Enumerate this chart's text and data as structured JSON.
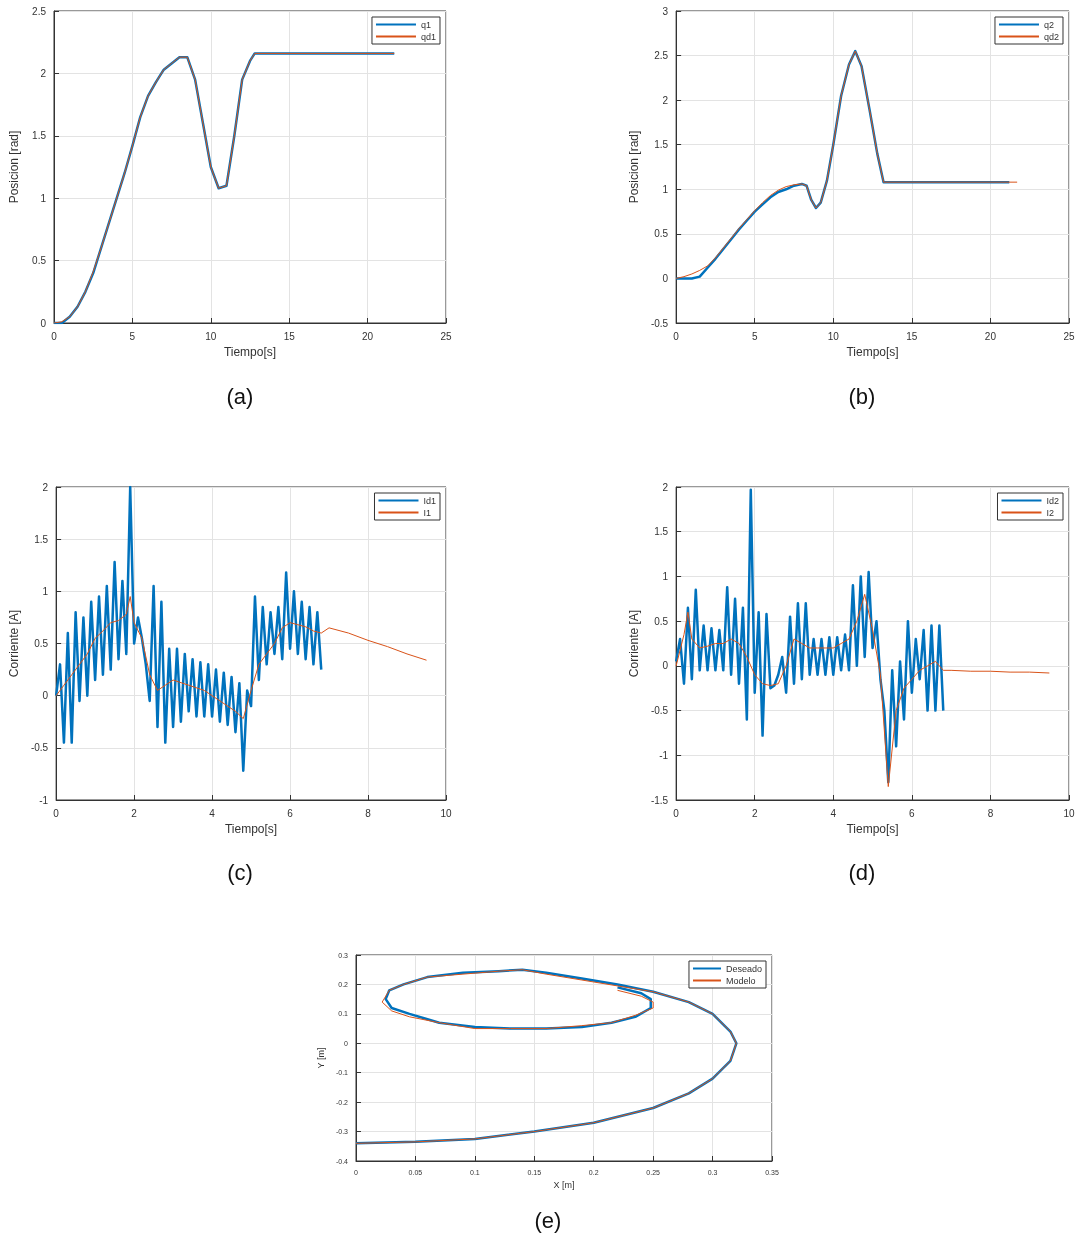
{
  "chart_data": [
    {
      "type": "line",
      "xlabel": "Tiempo[s]",
      "ylabel": "Posicion [rad]",
      "annotations": [
        "(a)"
      ],
      "xlim": [
        0,
        25
      ],
      "xticks": [
        0,
        5,
        10,
        15,
        20,
        25
      ],
      "ylim": [
        0,
        2.5
      ],
      "yticks": [
        0,
        0.5,
        1,
        1.5,
        2,
        2.5
      ],
      "grid": true,
      "legend": "top right",
      "x": [
        0,
        0.5,
        1,
        1.5,
        2,
        2.5,
        3,
        3.5,
        4,
        4.5,
        5,
        5.5,
        6,
        6.5,
        7,
        7.5,
        8,
        8.5,
        9,
        9.5,
        10,
        10.5,
        11,
        11.5,
        12,
        12.5,
        12.8,
        21.7
      ],
      "series": [
        {
          "name": "q1",
          "color": "#0072bd",
          "values": [
            0,
            0,
            0.05,
            0.13,
            0.25,
            0.4,
            0.6,
            0.8,
            1.0,
            1.2,
            1.42,
            1.65,
            1.82,
            1.93,
            2.03,
            2.08,
            2.13,
            2.13,
            1.95,
            1.6,
            1.25,
            1.08,
            1.1,
            1.5,
            1.95,
            2.1,
            2.16,
            2.16
          ]
        },
        {
          "name": "qd1",
          "color": "#d95319",
          "values": [
            0,
            0.01,
            0.05,
            0.13,
            0.25,
            0.41,
            0.6,
            0.8,
            1.0,
            1.2,
            1.42,
            1.65,
            1.82,
            1.93,
            2.03,
            2.08,
            2.13,
            2.13,
            1.95,
            1.6,
            1.25,
            1.08,
            1.1,
            1.5,
            1.95,
            2.1,
            2.16,
            2.16
          ]
        }
      ]
    },
    {
      "type": "line",
      "xlabel": "Tiempo[s]",
      "ylabel": "Posicion [rad]",
      "annotations": [
        "(b)"
      ],
      "xlim": [
        0,
        25
      ],
      "xticks": [
        0,
        5,
        10,
        15,
        20,
        25
      ],
      "ylim": [
        -0.5,
        3
      ],
      "yticks": [
        -0.5,
        0,
        0.5,
        1,
        1.5,
        2,
        2.5,
        3
      ],
      "grid": true,
      "legend": "top right",
      "series": [
        {
          "name": "q2",
          "color": "#0072bd",
          "x": [
            0,
            0.5,
            1,
            1.5,
            2,
            2.5,
            3,
            3.5,
            4,
            4.5,
            5,
            5.5,
            6,
            6.5,
            7,
            7.5,
            8,
            8.3,
            8.6,
            8.9,
            9.2,
            9.6,
            10,
            10.5,
            11,
            11.4,
            11.8,
            12.3,
            12.8,
            13.2,
            21.2
          ],
          "values": [
            0,
            0,
            0,
            0.02,
            0.12,
            0.22,
            0.33,
            0.44,
            0.55,
            0.65,
            0.75,
            0.83,
            0.91,
            0.97,
            1.0,
            1.04,
            1.06,
            1.04,
            0.88,
            0.79,
            0.85,
            1.1,
            1.5,
            2.05,
            2.4,
            2.55,
            2.38,
            1.9,
            1.4,
            1.08,
            1.08
          ]
        },
        {
          "name": "qd2",
          "color": "#d95319",
          "x": [
            0,
            0.5,
            1,
            1.5,
            2,
            2.5,
            3,
            3.5,
            4,
            4.5,
            5,
            5.5,
            6,
            6.5,
            7,
            7.5,
            8,
            8.3,
            8.6,
            8.9,
            9.2,
            9.6,
            10,
            10.5,
            11,
            11.4,
            11.8,
            12.3,
            12.8,
            13.2,
            21.7
          ],
          "values": [
            0,
            0.02,
            0.05,
            0.09,
            0.14,
            0.23,
            0.34,
            0.45,
            0.56,
            0.66,
            0.76,
            0.85,
            0.93,
            0.99,
            1.03,
            1.05,
            1.06,
            1.04,
            0.88,
            0.79,
            0.85,
            1.1,
            1.5,
            2.05,
            2.4,
            2.55,
            2.38,
            1.9,
            1.4,
            1.08,
            1.08
          ]
        }
      ]
    },
    {
      "type": "line",
      "xlabel": "Tiempo[s]",
      "ylabel": "Corriente [A]",
      "annotations": [
        "(c)"
      ],
      "xlim": [
        0,
        10
      ],
      "xticks": [
        0,
        2,
        4,
        6,
        8,
        10
      ],
      "ylim": [
        -1,
        2
      ],
      "yticks": [
        -1,
        -0.5,
        0,
        0.5,
        1,
        1.5,
        2
      ],
      "grid": true,
      "legend": "top right",
      "series": [
        {
          "name": "Id1",
          "color": "#0072bd",
          "x": [
            0,
            0.1,
            0.2,
            0.3,
            0.4,
            0.5,
            0.6,
            0.7,
            0.8,
            0.9,
            1.0,
            1.1,
            1.2,
            1.3,
            1.4,
            1.5,
            1.6,
            1.7,
            1.8,
            1.9,
            2.0,
            2.1,
            2.2,
            2.3,
            2.4,
            2.5,
            2.6,
            2.7,
            2.8,
            2.9,
            3.0,
            3.1,
            3.2,
            3.3,
            3.4,
            3.5,
            3.6,
            3.7,
            3.8,
            3.9,
            4.0,
            4.1,
            4.2,
            4.3,
            4.4,
            4.5,
            4.6,
            4.7,
            4.8,
            4.9,
            5.0,
            5.1,
            5.2,
            5.3,
            5.4,
            5.5,
            5.6,
            5.7,
            5.8,
            5.9,
            6.0,
            6.1,
            6.2,
            6.3,
            6.4,
            6.5,
            6.6,
            6.7,
            6.8
          ],
          "values": [
            0,
            0.3,
            -0.45,
            0.6,
            -0.45,
            0.8,
            -0.05,
            0.75,
            0.0,
            0.9,
            0.15,
            0.95,
            0.2,
            1.05,
            0.25,
            1.28,
            0.35,
            1.1,
            0.4,
            2.0,
            0.5,
            0.75,
            0.55,
            0.3,
            -0.05,
            1.05,
            -0.3,
            0.9,
            -0.45,
            0.45,
            -0.3,
            0.45,
            -0.25,
            0.4,
            -0.15,
            0.35,
            -0.2,
            0.32,
            -0.2,
            0.3,
            -0.2,
            0.25,
            -0.25,
            0.22,
            -0.28,
            0.18,
            -0.35,
            0.12,
            -0.72,
            0.05,
            -0.1,
            0.95,
            0.15,
            0.85,
            0.3,
            0.8,
            0.4,
            0.85,
            0.35,
            1.18,
            0.45,
            1.0,
            0.4,
            0.9,
            0.35,
            0.85,
            0.3,
            0.8,
            0.25
          ]
        },
        {
          "name": "I1",
          "color": "#d95319",
          "x": [
            0,
            0.2,
            0.4,
            0.6,
            0.8,
            1.0,
            1.2,
            1.4,
            1.6,
            1.8,
            1.9,
            2.0,
            2.2,
            2.4,
            2.6,
            2.8,
            3.0,
            3.4,
            3.8,
            4.2,
            4.6,
            4.8,
            5.0,
            5.2,
            5.4,
            5.6,
            5.8,
            6.0,
            6.2,
            6.4,
            6.6,
            6.8,
            7.0,
            7.5,
            8.0,
            8.5,
            9.0,
            9.5
          ],
          "values": [
            0,
            0.1,
            0.2,
            0.3,
            0.4,
            0.55,
            0.62,
            0.7,
            0.72,
            0.78,
            0.95,
            0.7,
            0.55,
            0.2,
            0.05,
            0.1,
            0.15,
            0.1,
            0.05,
            -0.05,
            -0.15,
            -0.22,
            0.05,
            0.3,
            0.4,
            0.5,
            0.65,
            0.7,
            0.68,
            0.66,
            0.62,
            0.6,
            0.65,
            0.6,
            0.53,
            0.47,
            0.4,
            0.34
          ]
        }
      ]
    },
    {
      "type": "line",
      "xlabel": "Tiempo[s]",
      "ylabel": "Corriente [A]",
      "annotations": [
        "(d)"
      ],
      "xlim": [
        0,
        10
      ],
      "xticks": [
        0,
        2,
        4,
        6,
        8,
        10
      ],
      "ylim": [
        -1.5,
        2
      ],
      "yticks": [
        -1.5,
        -1,
        -0.5,
        0,
        0.5,
        1,
        1.5,
        2
      ],
      "grid": true,
      "legend": "top right",
      "series": [
        {
          "name": "Id2",
          "color": "#0072bd",
          "x": [
            0,
            0.1,
            0.2,
            0.3,
            0.4,
            0.5,
            0.6,
            0.7,
            0.8,
            0.9,
            1.0,
            1.1,
            1.2,
            1.3,
            1.4,
            1.5,
            1.6,
            1.7,
            1.8,
            1.9,
            2.0,
            2.1,
            2.2,
            2.3,
            2.4,
            2.5,
            2.6,
            2.7,
            2.8,
            2.9,
            3.0,
            3.1,
            3.2,
            3.3,
            3.4,
            3.5,
            3.6,
            3.7,
            3.8,
            3.9,
            4.0,
            4.1,
            4.2,
            4.3,
            4.4,
            4.5,
            4.6,
            4.7,
            4.8,
            4.9,
            5.0,
            5.1,
            5.2,
            5.3,
            5.4,
            5.5,
            5.6,
            5.7,
            5.8,
            5.9,
            6.0,
            6.1,
            6.2,
            6.3,
            6.4,
            6.5,
            6.6,
            6.7,
            6.8
          ],
          "values": [
            0.05,
            0.3,
            -0.2,
            0.65,
            -0.15,
            0.85,
            -0.05,
            0.45,
            -0.05,
            0.42,
            -0.05,
            0.4,
            -0.05,
            0.88,
            -0.1,
            0.75,
            -0.2,
            0.65,
            -0.6,
            1.97,
            -0.3,
            0.6,
            -0.78,
            0.58,
            -0.25,
            -0.22,
            -0.1,
            0.1,
            -0.3,
            0.55,
            -0.2,
            0.7,
            -0.15,
            0.7,
            -0.1,
            0.3,
            -0.1,
            0.3,
            -0.1,
            0.32,
            -0.1,
            0.32,
            -0.05,
            0.35,
            -0.05,
            0.9,
            0.0,
            1.0,
            0.1,
            1.05,
            0.2,
            0.5,
            -0.15,
            -0.5,
            -1.3,
            -0.05,
            -0.9,
            0.05,
            -0.6,
            0.5,
            -0.3,
            0.3,
            -0.15,
            0.4,
            -0.5,
            0.45,
            -0.5,
            0.45,
            -0.5
          ]
        },
        {
          "name": "I2",
          "color": "#d95319",
          "x": [
            0,
            0.2,
            0.3,
            0.4,
            0.6,
            0.8,
            1.0,
            1.2,
            1.4,
            1.6,
            1.8,
            2.0,
            2.2,
            2.4,
            2.6,
            2.8,
            3.0,
            3.2,
            3.4,
            3.6,
            3.8,
            4.0,
            4.2,
            4.4,
            4.6,
            4.8,
            5.0,
            5.2,
            5.4,
            5.6,
            5.8,
            6.0,
            6.2,
            6.4,
            6.6,
            6.8,
            7.0,
            7.5,
            8.0,
            8.5,
            9.0,
            9.5
          ],
          "values": [
            0,
            0.35,
            0.6,
            0.3,
            0.2,
            0.22,
            0.25,
            0.25,
            0.3,
            0.25,
            0.1,
            -0.1,
            -0.2,
            -0.22,
            -0.2,
            0.0,
            0.3,
            0.25,
            0.2,
            0.2,
            0.2,
            0.2,
            0.25,
            0.3,
            0.5,
            0.8,
            0.4,
            -0.1,
            -1.35,
            -0.5,
            -0.25,
            -0.15,
            -0.05,
            0.0,
            0.05,
            -0.05,
            -0.05,
            -0.06,
            -0.06,
            -0.07,
            -0.07,
            -0.08
          ]
        }
      ]
    },
    {
      "type": "line",
      "xlabel": "X [m]",
      "ylabel": "Y [m]",
      "annotations": [
        "(e)"
      ],
      "xlim": [
        0,
        0.35
      ],
      "xticks": [
        0,
        0.05,
        0.1,
        0.15,
        0.2,
        0.25,
        0.3,
        0.35
      ],
      "ylim": [
        -0.4,
        0.3
      ],
      "yticks": [
        -0.4,
        -0.3,
        -0.2,
        -0.1,
        0,
        0.1,
        0.2,
        0.3
      ],
      "grid": true,
      "legend": "top right",
      "series": [
        {
          "name": "Deseado",
          "color": "#0072bd",
          "x": [
            0,
            0.05,
            0.1,
            0.15,
            0.2,
            0.25,
            0.28,
            0.3,
            0.315,
            0.32,
            0.315,
            0.3,
            0.28,
            0.25,
            0.22,
            0.19,
            0.16,
            0.14,
            0.12,
            0.09,
            0.06,
            0.04,
            0.028,
            0.025,
            0.03,
            0.045,
            0.07,
            0.1,
            0.13,
            0.16,
            0.19,
            0.215,
            0.235,
            0.248,
            0.248,
            0.24,
            0.22
          ],
          "values": [
            -0.34,
            -0.335,
            -0.325,
            -0.3,
            -0.27,
            -0.22,
            -0.17,
            -0.12,
            -0.06,
            0,
            0.04,
            0.1,
            0.14,
            0.175,
            0.2,
            0.22,
            0.24,
            0.25,
            0.245,
            0.24,
            0.225,
            0.2,
            0.18,
            0.15,
            0.12,
            0.1,
            0.07,
            0.055,
            0.05,
            0.05,
            0.055,
            0.07,
            0.09,
            0.12,
            0.15,
            0.17,
            0.19
          ]
        },
        {
          "name": "Modelo",
          "color": "#d95319",
          "x": [
            0,
            0.05,
            0.1,
            0.15,
            0.2,
            0.25,
            0.28,
            0.3,
            0.315,
            0.32,
            0.315,
            0.3,
            0.28,
            0.25,
            0.22,
            0.19,
            0.16,
            0.14,
            0.12,
            0.09,
            0.06,
            0.04,
            0.028,
            0.022,
            0.03,
            0.045,
            0.07,
            0.1,
            0.13,
            0.16,
            0.19,
            0.215,
            0.235,
            0.25,
            0.25,
            0.24,
            0.22
          ],
          "values": [
            -0.34,
            -0.335,
            -0.325,
            -0.3,
            -0.27,
            -0.22,
            -0.17,
            -0.12,
            -0.06,
            0,
            0.04,
            0.1,
            0.14,
            0.175,
            0.195,
            0.215,
            0.235,
            0.25,
            0.245,
            0.235,
            0.225,
            0.2,
            0.18,
            0.14,
            0.11,
            0.09,
            0.07,
            0.05,
            0.05,
            0.05,
            0.06,
            0.07,
            0.095,
            0.12,
            0.14,
            0.16,
            0.18
          ]
        }
      ]
    }
  ]
}
